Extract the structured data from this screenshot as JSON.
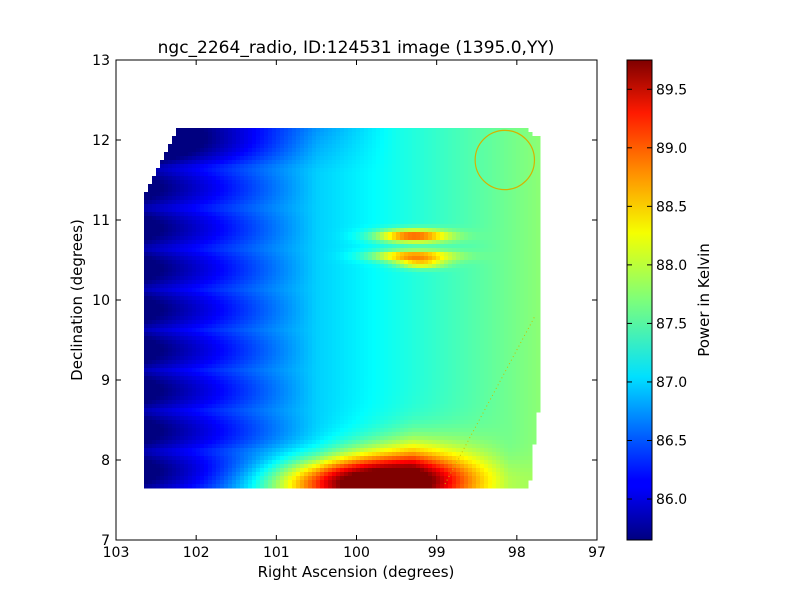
{
  "chart_data": {
    "type": "heatmap",
    "title": "ngc_2264_radio, ID:124531 image (1395.0,YY)",
    "xlabel": "Right Ascension (degrees)",
    "ylabel": "Declination (degrees)",
    "xlim": [
      103,
      97
    ],
    "ylim": [
      7,
      13
    ],
    "x_ticks": [
      "103",
      "102",
      "101",
      "100",
      "99",
      "98",
      "97"
    ],
    "y_ticks": [
      "7",
      "8",
      "9",
      "10",
      "11",
      "12",
      "13"
    ],
    "coverage": {
      "ra": [
        102.65,
        97.7
      ],
      "dec": [
        7.65,
        12.15
      ]
    },
    "hot_spots": [
      {
        "ra": 99.3,
        "dec": 10.8,
        "value": 88.9
      },
      {
        "ra": 99.3,
        "dec": 10.55,
        "value": 88.7
      },
      {
        "ra": 99.9,
        "dec": 7.85,
        "value": 89.5
      }
    ],
    "marker_circle": {
      "ra": 98.15,
      "dec": 11.75,
      "radius_deg": 0.37,
      "color": "#d4b200"
    },
    "colorbar": {
      "label": "Power in Kelvin",
      "range": [
        85.65,
        89.75
      ],
      "ticks": [
        "86.0",
        "86.5",
        "87.0",
        "87.5",
        "88.0",
        "88.5",
        "89.0",
        "89.5"
      ],
      "colormap": "jet"
    }
  }
}
